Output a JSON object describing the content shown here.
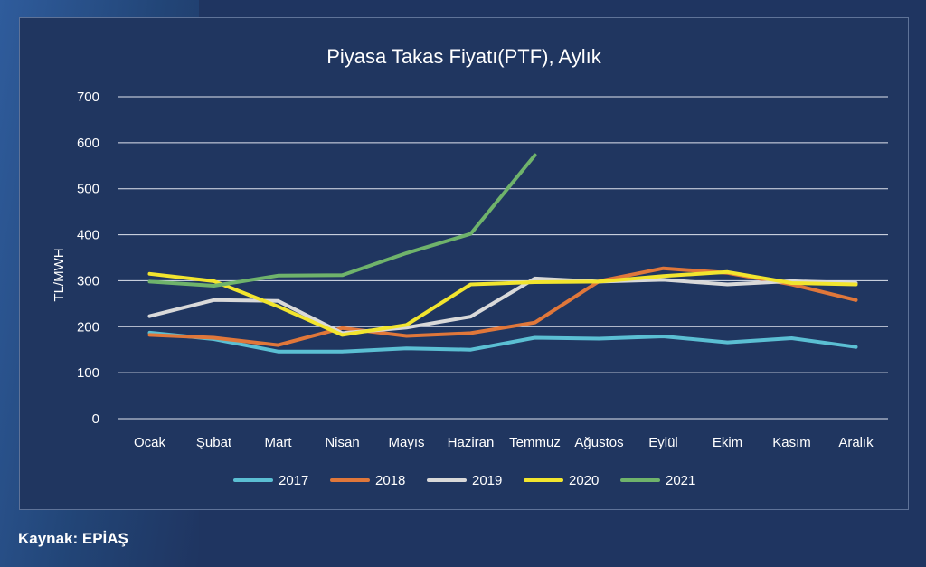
{
  "chart_data": {
    "type": "line",
    "title": "Piyasa Takas Fiyatı(PTF), Aylık",
    "ylabel": "TL/MWH",
    "xlabel": "",
    "ylim": [
      0,
      700
    ],
    "yticks": [
      0,
      100,
      200,
      300,
      400,
      500,
      600,
      700
    ],
    "grid": true,
    "legend_position": "bottom",
    "categories": [
      "Ocak",
      "Şubat",
      "Mart",
      "Nisan",
      "Mayıs",
      "Haziran",
      "Temmuz",
      "Ağustos",
      "Eylül",
      "Ekim",
      "Kasım",
      "Aralık"
    ],
    "series": [
      {
        "name": "2017",
        "color": "#5bbfd3",
        "values": [
          187,
          173,
          146,
          146,
          153,
          150,
          176,
          174,
          179,
          166,
          175,
          156
        ]
      },
      {
        "name": "2018",
        "color": "#e0773a",
        "values": [
          182,
          176,
          160,
          197,
          180,
          186,
          209,
          299,
          327,
          317,
          292,
          258
        ]
      },
      {
        "name": "2019",
        "color": "#d9d9d9",
        "values": [
          223,
          258,
          256,
          186,
          198,
          222,
          305,
          298,
          302,
          292,
          299,
          295
        ]
      },
      {
        "name": "2020",
        "color": "#f2e52e",
        "values": [
          315,
          299,
          244,
          182,
          204,
          292,
          297,
          298,
          310,
          319,
          295,
          292
        ]
      },
      {
        "name": "2021",
        "color": "#6fb36b",
        "values": [
          298,
          289,
          311,
          312,
          360,
          402,
          573,
          null,
          null,
          null,
          null,
          null
        ]
      }
    ]
  },
  "source": "Kaynak: EPİAŞ"
}
